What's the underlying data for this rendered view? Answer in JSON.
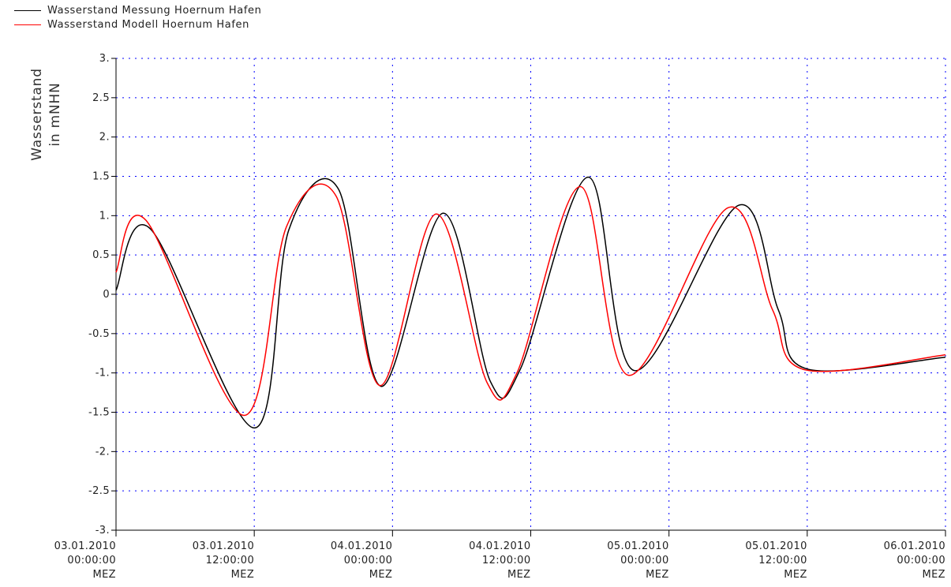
{
  "chart_data": {
    "type": "line",
    "ylabel_lines": [
      "Wasserstand",
      "in mNHN"
    ],
    "ylim": [
      -3,
      3
    ],
    "y_ticks": [
      "-3.",
      "-2.5",
      "-2.",
      "-1.5",
      "-1.",
      "-0.5",
      "0",
      "0.5",
      "1.",
      "1.5",
      "2.",
      "2.5",
      "3."
    ],
    "x_range_hours": [
      0,
      72
    ],
    "x_ticks": [
      {
        "date": "03.01.2010",
        "time": "00:00:00",
        "tz": "MEZ"
      },
      {
        "date": "03.01.2010",
        "time": "12:00:00",
        "tz": "MEZ"
      },
      {
        "date": "04.01.2010",
        "time": "00:00:00",
        "tz": "MEZ"
      },
      {
        "date": "04.01.2010",
        "time": "12:00:00",
        "tz": "MEZ"
      },
      {
        "date": "05.01.2010",
        "time": "00:00:00",
        "tz": "MEZ"
      },
      {
        "date": "05.01.2010",
        "time": "12:00:00",
        "tz": "MEZ"
      },
      {
        "date": "06.01.2010",
        "time": "00:00:00",
        "tz": "MEZ"
      }
    ],
    "grid": true,
    "grid_color": "#0000ff",
    "legend_position": "top-left",
    "series": [
      {
        "name": "Wasserstand Messung Hoernum Hafen",
        "color": "#000000",
        "x": [
          0,
          3,
          12,
          15,
          19.3,
          23,
          28.4,
          32.5,
          35.1,
          41,
          45,
          47.7,
          54,
          57.5,
          60,
          66,
          69.5,
          72
        ],
        "y": [
          0.05,
          0.83,
          -1.7,
          0.82,
          1.34,
          -1.17,
          1.03,
          -1.11,
          -0.95,
          1.49,
          -0.97,
          0.0,
          1.13,
          -0.2,
          -0.95,
          0.0,
          0.0,
          -0.8
        ]
      },
      {
        "name": "Wasserstand Modell Hoernum Hafen",
        "color": "#ff0000",
        "x": [
          0,
          2.6,
          11.1,
          14.8,
          19.1,
          22.9,
          27.8,
          32.2,
          34.8,
          40.3,
          44.5,
          47.5,
          53.1,
          57.0,
          59.8,
          65.5,
          69.3,
          72
        ],
        "y": [
          0.28,
          0.94,
          -1.54,
          0.86,
          1.25,
          -1.16,
          1.02,
          -1.12,
          -1.0,
          1.37,
          -1.03,
          0.0,
          1.1,
          -0.2,
          -0.96,
          0.0,
          0.0,
          -0.77
        ]
      }
    ]
  }
}
